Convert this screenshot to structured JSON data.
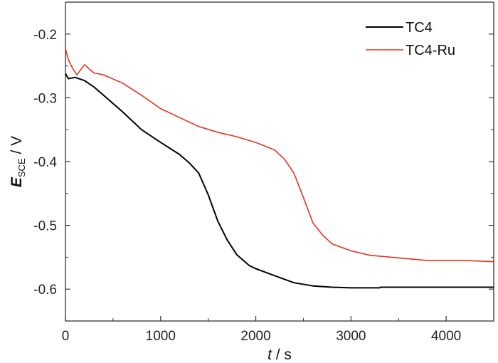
{
  "chart_data": {
    "type": "line",
    "xlabel": {
      "var": "t",
      "unit": " / s"
    },
    "ylabel": {
      "var": "E",
      "sub": "SCE",
      "unit": " / V"
    },
    "xlim": [
      0,
      4500
    ],
    "ylim": [
      -0.65,
      -0.15
    ],
    "xticks": [
      0,
      1000,
      2000,
      3000,
      4000
    ],
    "xtick_labels": [
      "0",
      "1000",
      "2000",
      "3000",
      "4000"
    ],
    "yticks": [
      -0.2,
      -0.3,
      -0.4,
      -0.5,
      -0.6
    ],
    "ytick_labels": [
      "-0.2",
      "-0.3",
      "-0.4",
      "-0.5",
      "-0.6"
    ],
    "grid": false,
    "legend_position": "top-right",
    "series": [
      {
        "name": "TC4",
        "color": "#000000",
        "x": [
          0,
          30,
          100,
          200,
          300,
          400,
          600,
          800,
          1000,
          1200,
          1300,
          1400,
          1500,
          1600,
          1700,
          1800,
          1930,
          2000,
          2200,
          2400,
          2600,
          2800,
          3000,
          3300,
          3310,
          4500
        ],
        "y": [
          -0.262,
          -0.27,
          -0.268,
          -0.273,
          -0.283,
          -0.296,
          -0.322,
          -0.35,
          -0.37,
          -0.389,
          -0.402,
          -0.418,
          -0.452,
          -0.493,
          -0.523,
          -0.546,
          -0.563,
          -0.568,
          -0.579,
          -0.59,
          -0.595,
          -0.597,
          -0.598,
          -0.598,
          -0.597,
          -0.597
        ]
      },
      {
        "name": "TC4-Ru",
        "color": "#e8321e",
        "x": [
          0,
          30,
          80,
          120,
          200,
          300,
          400,
          600,
          800,
          1000,
          1200,
          1400,
          1600,
          1800,
          2000,
          2200,
          2300,
          2400,
          2500,
          2600,
          2700,
          2800,
          3000,
          3200,
          3500,
          3800,
          4200,
          4500
        ],
        "y": [
          -0.223,
          -0.24,
          -0.255,
          -0.264,
          -0.248,
          -0.261,
          -0.264,
          -0.277,
          -0.296,
          -0.317,
          -0.331,
          -0.345,
          -0.354,
          -0.361,
          -0.37,
          -0.382,
          -0.396,
          -0.418,
          -0.456,
          -0.496,
          -0.515,
          -0.529,
          -0.54,
          -0.547,
          -0.551,
          -0.555,
          -0.555,
          -0.557
        ]
      }
    ]
  }
}
